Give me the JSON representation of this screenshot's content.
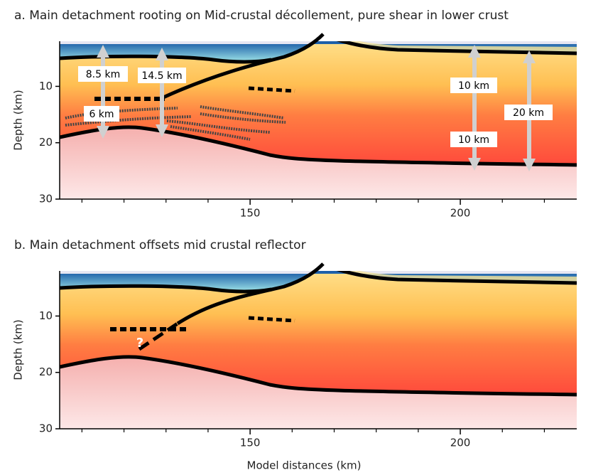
{
  "panels": [
    {
      "title": "a. Main detachment rooting on Mid-crustal décollement, pure shear in lower crust",
      "y_label": "Depth (km)",
      "annotations": [
        "8.5 km",
        "14.5 km",
        "6 km",
        "10 km",
        "10 km",
        "20 km"
      ]
    },
    {
      "title": "b. Main detachment offsets mid crustal reflector",
      "y_label": "Depth (km)",
      "annotations": [
        "?"
      ]
    }
  ],
  "x_label": "Model distances (km)",
  "xlim": [
    104.7,
    227.7
  ],
  "xticks": [
    150,
    200
  ],
  "xminor_ticks": [
    110,
    120,
    130,
    140,
    160,
    170,
    180,
    190,
    210,
    220
  ],
  "ylim": [
    2,
    30
  ],
  "yticks": [
    10,
    20,
    30
  ]
}
